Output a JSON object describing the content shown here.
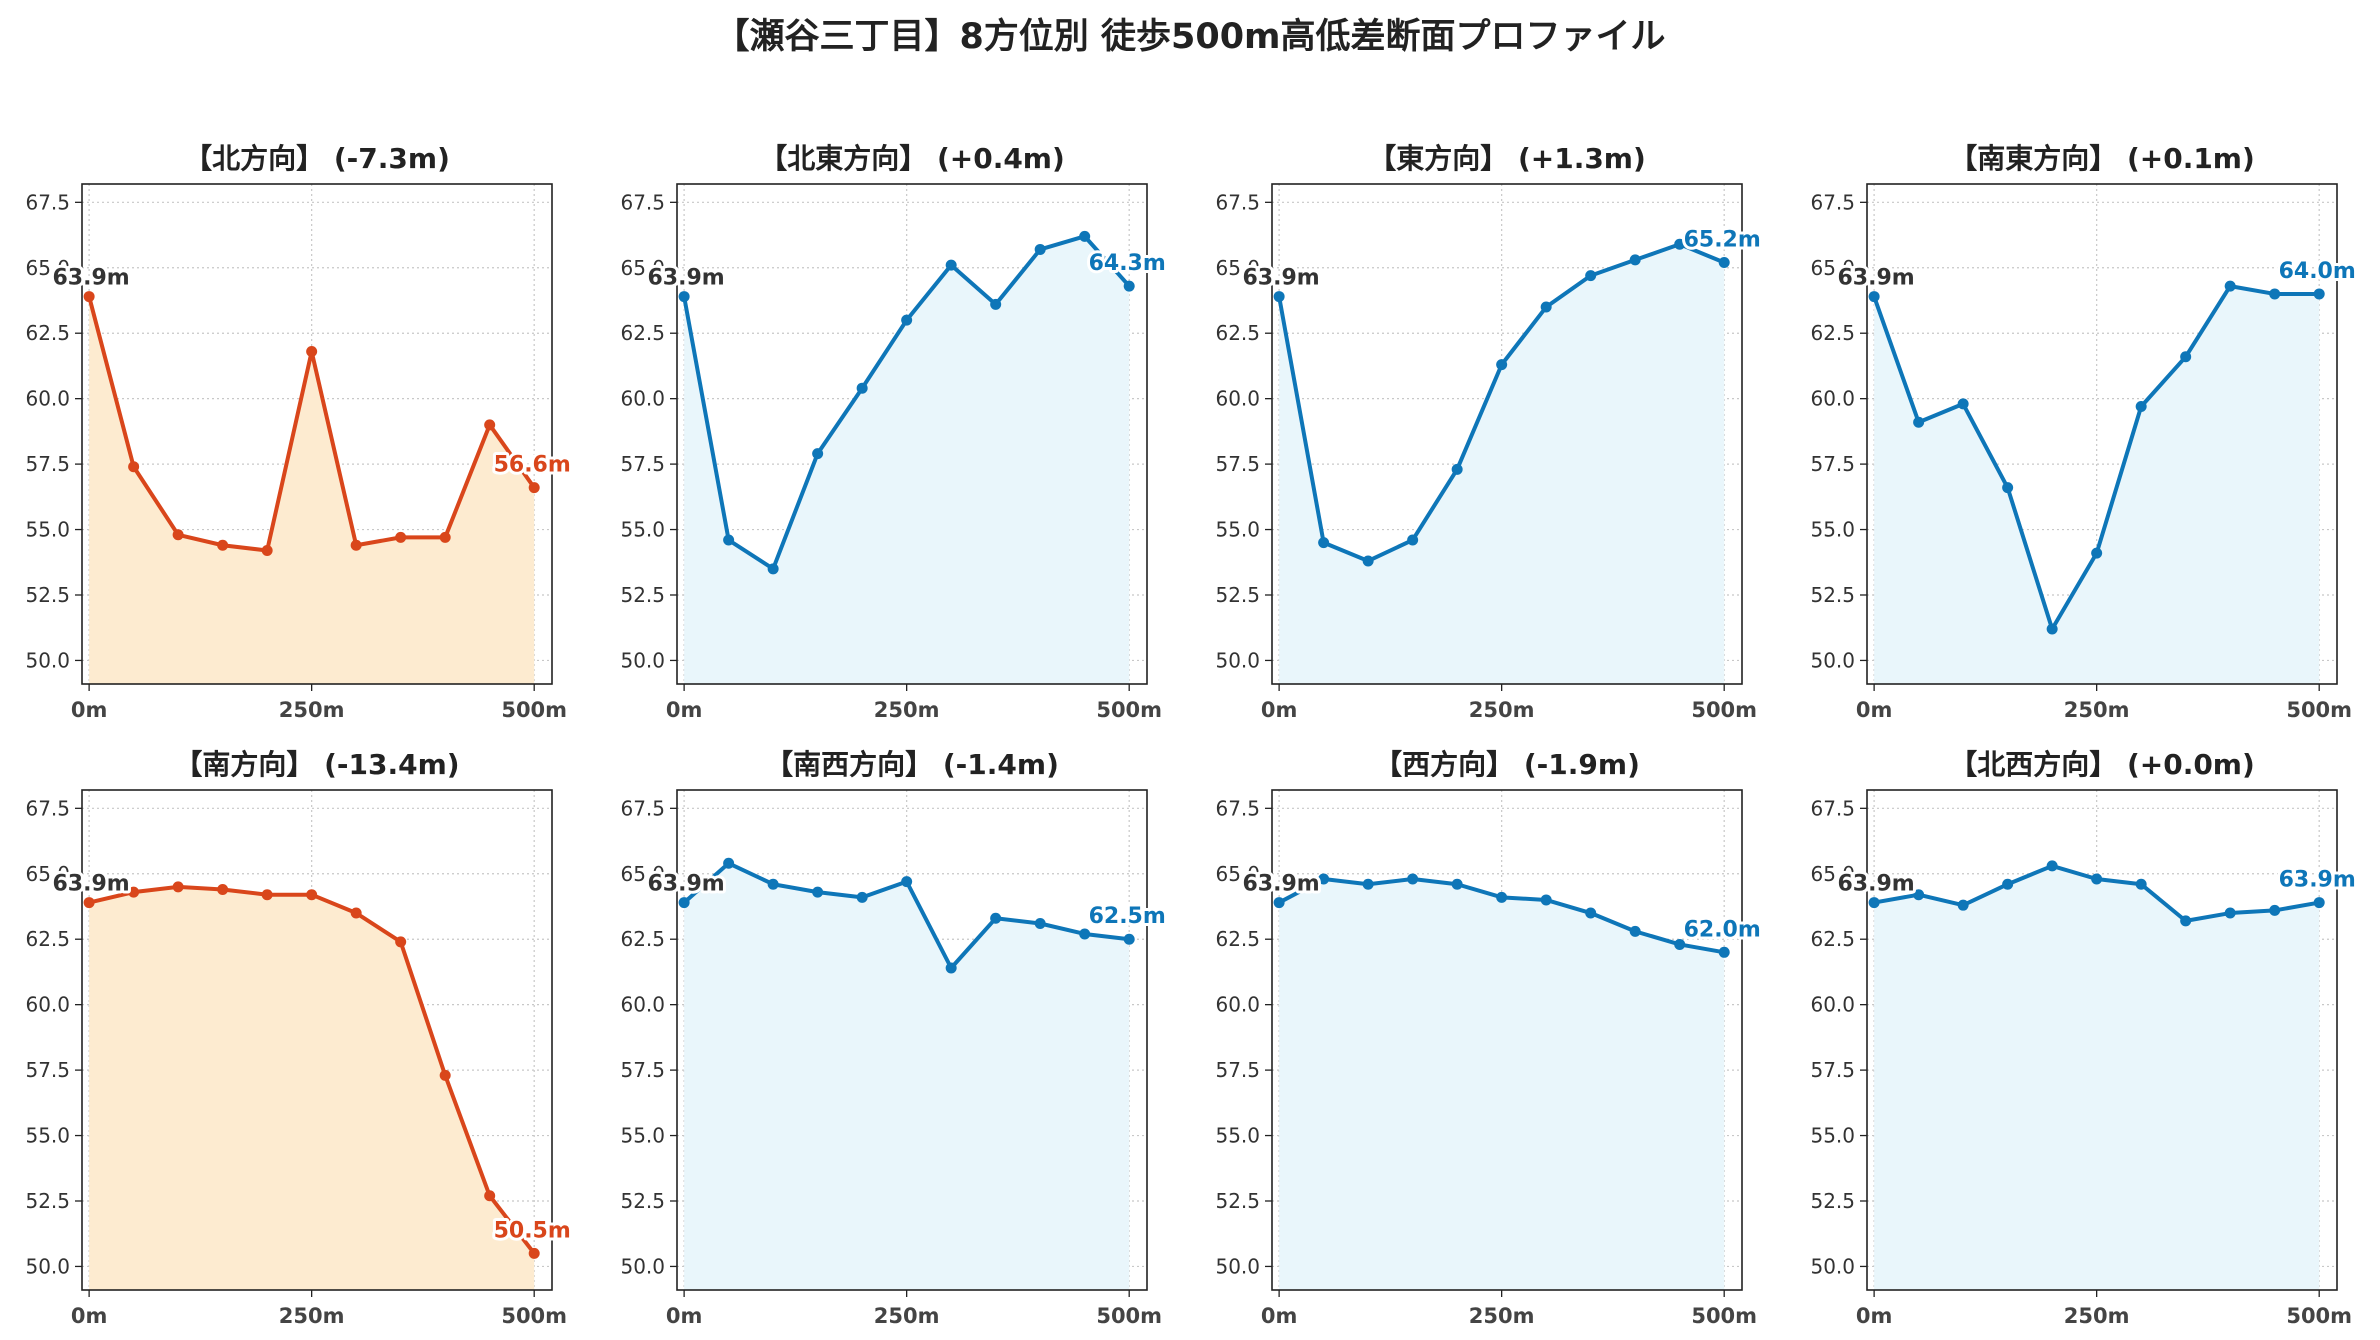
{
  "suptitle": "【瀬谷三丁目】8方位別 徒歩500m高低差断面プロファイル",
  "colors": {
    "descent_line": "#d9461b",
    "descent_fill": "#fdebd0",
    "ascent_line": "#0e76b8",
    "ascent_fill": "#e9f6fb",
    "start_label": "#333333",
    "grid": "#c8c8c8"
  },
  "chart_data": [
    {
      "type": "area",
      "title": "【北方向】 (-7.3m)",
      "x": [
        0,
        50,
        100,
        150,
        200,
        250,
        300,
        350,
        400,
        450,
        500
      ],
      "values": [
        63.9,
        57.4,
        54.8,
        54.4,
        54.2,
        61.8,
        54.4,
        54.7,
        54.7,
        59.0,
        56.6
      ],
      "start_label": "63.9m",
      "end_label": "56.6m",
      "trend": "down",
      "ylim": [
        49.1,
        68.2
      ],
      "yticks": [
        "50.0",
        "52.5",
        "55.0",
        "57.5",
        "60.0",
        "62.5",
        "65.0",
        "67.5"
      ],
      "xticks": [
        "0m",
        "250m",
        "500m"
      ],
      "grid": true
    },
    {
      "type": "area",
      "title": "【北東方向】 (+0.4m)",
      "x": [
        0,
        50,
        100,
        150,
        200,
        250,
        300,
        350,
        400,
        450,
        500
      ],
      "values": [
        63.9,
        54.6,
        53.5,
        57.9,
        60.4,
        63.0,
        65.1,
        63.6,
        65.7,
        66.2,
        64.3
      ],
      "start_label": "63.9m",
      "end_label": "64.3m",
      "trend": "up",
      "ylim": [
        49.1,
        68.2
      ],
      "yticks": [
        "50.0",
        "52.5",
        "55.0",
        "57.5",
        "60.0",
        "62.5",
        "65.0",
        "67.5"
      ],
      "xticks": [
        "0m",
        "250m",
        "500m"
      ],
      "grid": true
    },
    {
      "type": "area",
      "title": "【東方向】 (+1.3m)",
      "x": [
        0,
        50,
        100,
        150,
        200,
        250,
        300,
        350,
        400,
        450,
        500
      ],
      "values": [
        63.9,
        54.5,
        53.8,
        54.6,
        57.3,
        61.3,
        63.5,
        64.7,
        65.3,
        65.9,
        65.2
      ],
      "start_label": "63.9m",
      "end_label": "65.2m",
      "trend": "up",
      "ylim": [
        49.1,
        68.2
      ],
      "yticks": [
        "50.0",
        "52.5",
        "55.0",
        "57.5",
        "60.0",
        "62.5",
        "65.0",
        "67.5"
      ],
      "xticks": [
        "0m",
        "250m",
        "500m"
      ],
      "grid": true
    },
    {
      "type": "area",
      "title": "【南東方向】 (+0.1m)",
      "x": [
        0,
        50,
        100,
        150,
        200,
        250,
        300,
        350,
        400,
        450,
        500
      ],
      "values": [
        63.9,
        59.1,
        59.8,
        56.6,
        51.2,
        54.1,
        59.7,
        61.6,
        64.3,
        64.0,
        64.0
      ],
      "start_label": "63.9m",
      "end_label": "64.0m",
      "trend": "up",
      "ylim": [
        49.1,
        68.2
      ],
      "yticks": [
        "50.0",
        "52.5",
        "55.0",
        "57.5",
        "60.0",
        "62.5",
        "65.0",
        "67.5"
      ],
      "xticks": [
        "0m",
        "250m",
        "500m"
      ],
      "grid": true
    },
    {
      "type": "area",
      "title": "【南方向】 (-13.4m)",
      "x": [
        0,
        50,
        100,
        150,
        200,
        250,
        300,
        350,
        400,
        450,
        500
      ],
      "values": [
        63.9,
        64.3,
        64.5,
        64.4,
        64.2,
        64.2,
        63.5,
        62.4,
        57.3,
        52.7,
        50.5
      ],
      "start_label": "63.9m",
      "end_label": "50.5m",
      "trend": "down",
      "ylim": [
        49.1,
        68.2
      ],
      "yticks": [
        "50.0",
        "52.5",
        "55.0",
        "57.5",
        "60.0",
        "62.5",
        "65.0",
        "67.5"
      ],
      "xticks": [
        "0m",
        "250m",
        "500m"
      ],
      "grid": true
    },
    {
      "type": "area",
      "title": "【南西方向】 (-1.4m)",
      "x": [
        0,
        50,
        100,
        150,
        200,
        250,
        300,
        350,
        400,
        450,
        500
      ],
      "values": [
        63.9,
        65.4,
        64.6,
        64.3,
        64.1,
        64.7,
        61.4,
        63.3,
        63.1,
        62.7,
        62.5
      ],
      "start_label": "63.9m",
      "end_label": "62.5m",
      "trend": "up",
      "ylim": [
        49.1,
        68.2
      ],
      "yticks": [
        "50.0",
        "52.5",
        "55.0",
        "57.5",
        "60.0",
        "62.5",
        "65.0",
        "67.5"
      ],
      "xticks": [
        "0m",
        "250m",
        "500m"
      ],
      "grid": true
    },
    {
      "type": "area",
      "title": "【西方向】 (-1.9m)",
      "x": [
        0,
        50,
        100,
        150,
        200,
        250,
        300,
        350,
        400,
        450,
        500
      ],
      "values": [
        63.9,
        64.8,
        64.6,
        64.8,
        64.6,
        64.1,
        64.0,
        63.5,
        62.8,
        62.3,
        62.0
      ],
      "start_label": "63.9m",
      "end_label": "62.0m",
      "trend": "up",
      "ylim": [
        49.1,
        68.2
      ],
      "yticks": [
        "50.0",
        "52.5",
        "55.0",
        "57.5",
        "60.0",
        "62.5",
        "65.0",
        "67.5"
      ],
      "xticks": [
        "0m",
        "250m",
        "500m"
      ],
      "grid": true
    },
    {
      "type": "area",
      "title": "【北西方向】 (+0.0m)",
      "x": [
        0,
        50,
        100,
        150,
        200,
        250,
        300,
        350,
        400,
        450,
        500
      ],
      "values": [
        63.9,
        64.2,
        63.8,
        64.6,
        65.3,
        64.8,
        64.6,
        63.2,
        63.5,
        63.6,
        63.9
      ],
      "start_label": "63.9m",
      "end_label": "63.9m",
      "trend": "up",
      "ylim": [
        49.1,
        68.2
      ],
      "yticks": [
        "50.0",
        "52.5",
        "55.0",
        "57.5",
        "60.0",
        "62.5",
        "65.0",
        "67.5"
      ],
      "xticks": [
        "0m",
        "250m",
        "500m"
      ],
      "grid": true
    }
  ]
}
